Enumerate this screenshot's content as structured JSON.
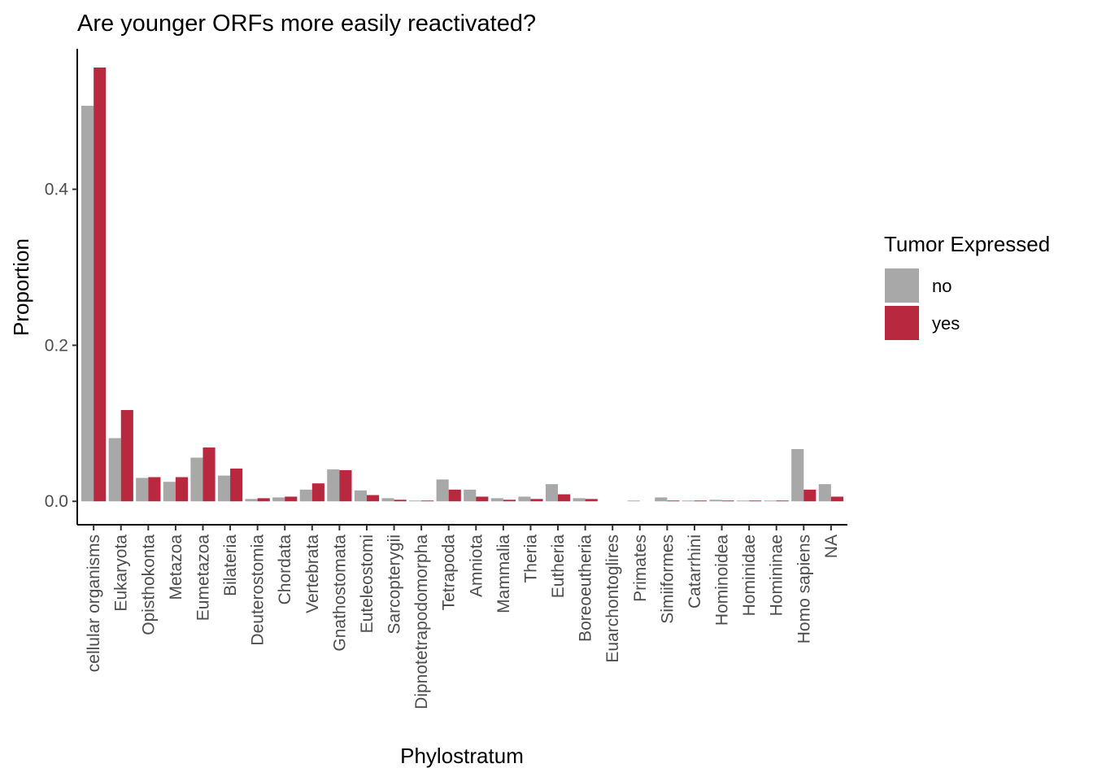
{
  "chart_data": {
    "type": "bar",
    "title": "Are younger ORFs more easily reactivated?",
    "xlabel": "Phylostratum",
    "ylabel": "Proportion",
    "ylim": [
      -0.03,
      0.58
    ],
    "yticks": [
      0.0,
      0.2,
      0.4
    ],
    "ytick_labels": [
      "0.0",
      "0.2",
      "0.4"
    ],
    "grid": false,
    "legend_position": "right",
    "legend_title": "Tumor Expressed",
    "categories": [
      "cellular organisms",
      "Eukaryota",
      "Opisthokonta",
      "Metazoa",
      "Eumetazoa",
      "Bilateria",
      "Deuterostomia",
      "Chordata",
      "Vertebrata",
      "Gnathostomata",
      "Euteleostomi",
      "Sarcopterygii",
      "Dipnotetrapodomorpha",
      "Tetrapoda",
      "Amniota",
      "Mammalia",
      "Theria",
      "Eutheria",
      "Boreoeutheria",
      "Euarchontoglires",
      "Primates",
      "Simiiformes",
      "Catarrhini",
      "Hominoidea",
      "Hominidae",
      "Homininae",
      "Homo sapiens",
      "NA"
    ],
    "series": [
      {
        "name": "no",
        "color": "#a9a8a9",
        "values": [
          0.507,
          0.081,
          0.03,
          0.025,
          0.056,
          0.033,
          0.003,
          0.005,
          0.015,
          0.041,
          0.014,
          0.004,
          0.001,
          0.028,
          0.015,
          0.004,
          0.006,
          0.022,
          0.004,
          0.0,
          0.001,
          0.005,
          0.001,
          0.002,
          0.001,
          0.001,
          0.067,
          0.022
        ]
      },
      {
        "name": "yes",
        "color": "#b8283e",
        "values": [
          0.556,
          0.117,
          0.031,
          0.031,
          0.069,
          0.042,
          0.004,
          0.006,
          0.023,
          0.04,
          0.008,
          0.002,
          0.001,
          0.015,
          0.006,
          0.002,
          0.003,
          0.009,
          0.003,
          0.0,
          0.0,
          0.001,
          0.001,
          0.001,
          0.001,
          0.001,
          0.015,
          0.006
        ]
      }
    ]
  }
}
